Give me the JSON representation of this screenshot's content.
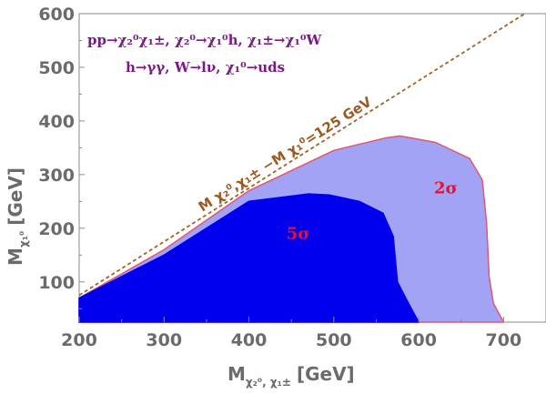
{
  "chart_data": {
    "type": "area",
    "x_axis": {
      "label_main": "M",
      "label_sub": "χ₂⁰, χ₁±",
      "label_unit": "[GeV]",
      "range": [
        200,
        750
      ],
      "ticks": [
        "200",
        "300",
        "400",
        "500",
        "600",
        "700"
      ]
    },
    "y_axis": {
      "label_main": "M",
      "label_sub": "χ₁⁰",
      "label_unit": "[GeV]",
      "range": [
        25,
        600
      ],
      "ticks": [
        "100",
        "200",
        "300",
        "400",
        "500",
        "600"
      ]
    },
    "process_line1": "pp→χ₂⁰χ₁±, χ₂⁰→χ₁⁰h, χ₁±→χ₁⁰W",
    "process_line2": "h→γγ, W→lν, χ₁⁰→uds",
    "diagonal_label": "M χ₂⁰,χ₁± −M χ₁⁰=125 GeV",
    "diagonal_offset": 125,
    "colors": {
      "two_sigma_fill": "#a3a3f6",
      "two_sigma_edge": "#e0576e",
      "five_sigma_fill": "#0000ee",
      "diagonal": "#a0642a",
      "label": "#e8102a",
      "process_text": "#7b1a86"
    },
    "series": [
      {
        "name": "2σ",
        "label": "2σ",
        "points": [
          [
            200,
            25
          ],
          [
            200,
            70
          ],
          [
            300,
            160
          ],
          [
            400,
            270
          ],
          [
            440,
            300
          ],
          [
            500,
            345
          ],
          [
            560,
            368
          ],
          [
            578,
            372
          ],
          [
            620,
            360
          ],
          [
            660,
            330
          ],
          [
            675,
            290
          ],
          [
            680,
            210
          ],
          [
            683,
            110
          ],
          [
            688,
            60
          ],
          [
            700,
            25
          ]
        ]
      },
      {
        "name": "5σ",
        "label": "5σ",
        "points": [
          [
            200,
            25
          ],
          [
            200,
            70
          ],
          [
            300,
            150
          ],
          [
            400,
            250
          ],
          [
            440,
            258
          ],
          [
            470,
            264
          ],
          [
            495,
            262
          ],
          [
            530,
            250
          ],
          [
            558,
            228
          ],
          [
            570,
            185
          ],
          [
            575,
            100
          ],
          [
            588,
            60
          ],
          [
            600,
            25
          ]
        ]
      }
    ],
    "region_labels": [
      {
        "name": "2σ",
        "x": 632,
        "y": 275
      },
      {
        "name": "5σ",
        "x": 458,
        "y": 190
      }
    ]
  }
}
